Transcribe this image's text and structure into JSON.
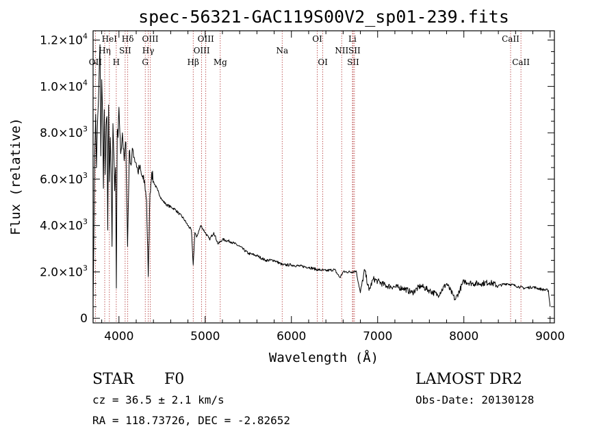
{
  "chart_data": {
    "type": "line",
    "title": "spec-56321-GAC119S00V2_sp01-239.fits",
    "xlabel": "Wavelength (Å)",
    "ylabel": "Flux (relative)",
    "xlim": [
      3700,
      9050
    ],
    "ylim": [
      -200,
      12400
    ],
    "xticks": [
      4000,
      5000,
      6000,
      7000,
      8000,
      9000
    ],
    "xtick_labels": [
      "4000",
      "5000",
      "6000",
      "7000",
      "8000",
      "9000"
    ],
    "yticks": [
      0,
      2000,
      4000,
      6000,
      8000,
      10000,
      12000
    ],
    "ytick_labels": [
      {
        "mant": "0",
        "exp": ""
      },
      {
        "mant": "2.0×10",
        "exp": "3"
      },
      {
        "mant": "4.0×10",
        "exp": "3"
      },
      {
        "mant": "6.0×10",
        "exp": "3"
      },
      {
        "mant": "8.0×10",
        "exp": "3"
      },
      {
        "mant": "1.0×10",
        "exp": "4"
      },
      {
        "mant": "1.2×10",
        "exp": "4"
      }
    ],
    "series": [
      {
        "x": [
          3700,
          3710,
          3720,
          3730,
          3740,
          3750,
          3760,
          3770,
          3780,
          3790,
          3800,
          3810,
          3820,
          3830,
          3840,
          3850,
          3860,
          3870,
          3880,
          3890,
          3900,
          3910,
          3920,
          3930,
          3940,
          3950,
          3960,
          3970,
          3980,
          3990,
          4000,
          4020,
          4040,
          4060,
          4080,
          4100,
          4120,
          4140,
          4160,
          4180,
          4200,
          4220,
          4240,
          4260,
          4280,
          4300,
          4320,
          4340,
          4360,
          4380,
          4400,
          4450,
          4500,
          4550,
          4600,
          4650,
          4700,
          4750,
          4800,
          4840,
          4861,
          4880,
          4900,
          4950,
          5000,
          5050,
          5100,
          5150,
          5200,
          5300,
          5400,
          5500,
          5600,
          5700,
          5800,
          5900,
          6000,
          6100,
          6200,
          6300,
          6400,
          6500,
          6563,
          6600,
          6700,
          6750,
          6800,
          6850,
          6900,
          6950,
          7000,
          7100,
          7200,
          7300,
          7400,
          7500,
          7600,
          7700,
          7800,
          7900,
          8000,
          8100,
          8200,
          8300,
          8400,
          8500,
          8600,
          8700,
          8800,
          8900,
          8980,
          9000
        ],
        "y": [
          600,
          4000,
          7200,
          8800,
          6500,
          8300,
          9200,
          10500,
          11800,
          7000,
          10300,
          8800,
          5600,
          9000,
          6200,
          8300,
          8700,
          3800,
          9200,
          5900,
          7800,
          6200,
          3100,
          8400,
          7200,
          5500,
          6500,
          1300,
          8100,
          7800,
          9100,
          7100,
          8000,
          6800,
          7600,
          3100,
          7200,
          6600,
          7300,
          6900,
          6700,
          6300,
          6500,
          6200,
          6000,
          5800,
          5100,
          1800,
          5400,
          6300,
          5900,
          5500,
          5100,
          4900,
          4800,
          4700,
          4500,
          4300,
          4000,
          3800,
          2300,
          3700,
          3500,
          4000,
          3700,
          3400,
          3700,
          3200,
          3400,
          3300,
          3100,
          2800,
          2700,
          2500,
          2500,
          2300,
          2300,
          2250,
          2200,
          2100,
          2050,
          2100,
          1750,
          2000,
          2000,
          2050,
          1100,
          2100,
          1200,
          1700,
          1600,
          1400,
          1350,
          1300,
          1100,
          1400,
          1200,
          1000,
          1500,
          800,
          1600,
          1500,
          1500,
          1550,
          1400,
          1500,
          1400,
          1300,
          1350,
          1250,
          1200,
          500
        ]
      }
    ],
    "emission_lines": [
      {
        "name": "OII",
        "wl": 3727,
        "row": 3
      },
      {
        "name": "Hη",
        "wl": 3835,
        "row": 2
      },
      {
        "name": "HeI",
        "wl": 3889,
        "row": 1
      },
      {
        "name": "H",
        "wl": 3969,
        "row": 3
      },
      {
        "name": "SII",
        "wl": 4072,
        "row": 2
      },
      {
        "name": "Hδ",
        "wl": 4102,
        "row": 1
      },
      {
        "name": "G",
        "wl": 4305,
        "row": 3
      },
      {
        "name": "Hγ",
        "wl": 4340,
        "row": 2
      },
      {
        "name": "OIII",
        "wl": 4363,
        "row": 1
      },
      {
        "name": "Hβ",
        "wl": 4861,
        "row": 3
      },
      {
        "name": "OIII",
        "wl": 4959,
        "row": 2
      },
      {
        "name": "OIII",
        "wl": 5007,
        "row": 1
      },
      {
        "name": "Mg",
        "wl": 5175,
        "row": 3
      },
      {
        "name": "Na",
        "wl": 5893,
        "row": 2
      },
      {
        "name": "OI",
        "wl": 6300,
        "row": 1
      },
      {
        "name": "OI",
        "wl": 6364,
        "row": 3
      },
      {
        "name": "NII",
        "wl": 6583,
        "row": 2
      },
      {
        "name": "Li",
        "wl": 6708,
        "row": 1
      },
      {
        "name": "SII",
        "wl": 6716,
        "row": 3
      },
      {
        "name": "SII",
        "wl": 6731,
        "row": 2
      },
      {
        "name": "CaII",
        "wl": 8542,
        "row": 1
      },
      {
        "name": "CaII",
        "wl": 8662,
        "row": 3
      }
    ]
  },
  "info": {
    "class": "STAR",
    "subclass": "F0",
    "survey": "LAMOST DR2",
    "cz": "cz = 36.5 ± 2.1 km/s",
    "obs_date": "Obs-Date: 20130128",
    "radec": "RA = 118.73726, DEC =  -2.82652"
  },
  "colors": {
    "line_marker": "#b03030",
    "spectrum": "#000000"
  }
}
